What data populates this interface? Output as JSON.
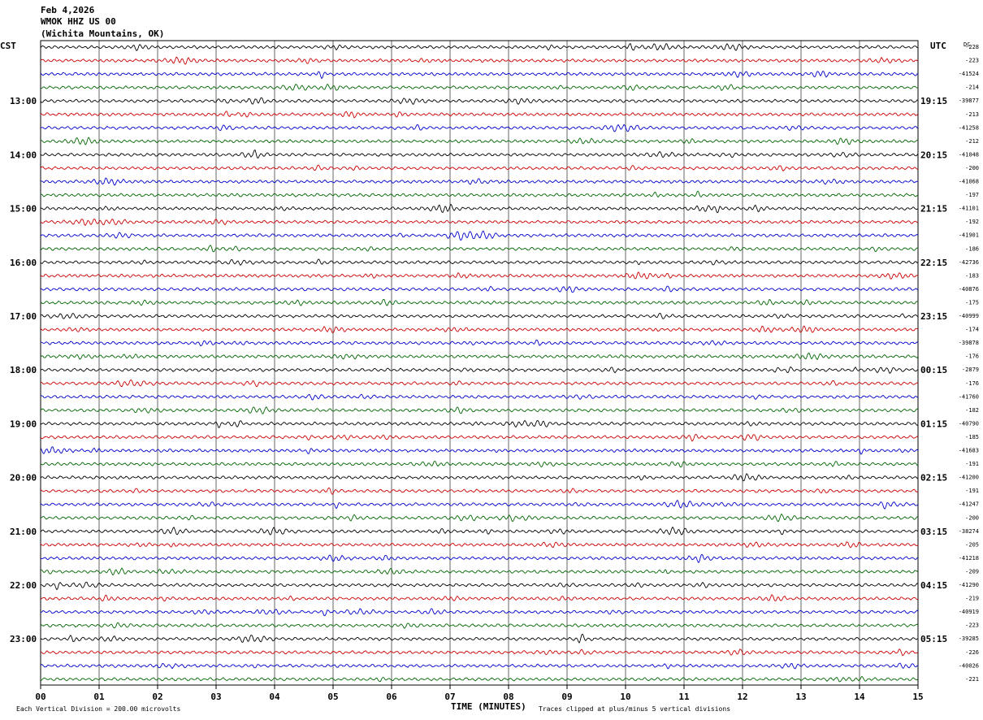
{
  "header": {
    "date": "Feb 4,2026",
    "station": "WMOK HHZ US 00",
    "location": "(Wichita Mountains, OK)"
  },
  "left_tz": "CST",
  "right_tz": "UTC",
  "dc_header": "DC",
  "footer": {
    "scale": "Each Vertical Division =  200.00 microvolts",
    "clip": "Traces clipped at plus/minus 5 vertical divisions"
  },
  "colors": {
    "cycle": [
      "#000000",
      "#cc0000",
      "#0000cc",
      "#006600"
    ],
    "grid": "#000000"
  },
  "chart_data": {
    "type": "line",
    "title": "",
    "xlabel": "TIME (MINUTES)",
    "ylabel": "",
    "x_ticks": [
      "00",
      "01",
      "02",
      "03",
      "04",
      "05",
      "06",
      "07",
      "08",
      "09",
      "10",
      "11",
      "12",
      "13",
      "14",
      "15"
    ],
    "xlim": [
      0,
      15
    ],
    "left_hour_labels": [
      "13:00",
      "14:00",
      "15:00",
      "16:00",
      "17:00",
      "18:00",
      "19:00",
      "20:00",
      "21:00",
      "22:00",
      "23:00"
    ],
    "right_hour_labels": [
      "19:15",
      "20:15",
      "21:15",
      "22:15",
      "23:15",
      "00:15",
      "01:15",
      "02:15",
      "03:15",
      "04:15",
      "05:15"
    ],
    "traces_per_hour": 4,
    "num_traces": 48,
    "dc_offsets": [
      "-228",
      "-223",
      "-41524",
      "-214",
      "-39877",
      "-213",
      "-41258",
      "-212",
      "-41048",
      "-200",
      "-41068",
      "-197",
      "-41101",
      "-192",
      "-41901",
      "-186",
      "-42736",
      "-183",
      "-40876",
      "-175",
      "-40999",
      "-174",
      "-39878",
      "-176",
      "-2879",
      "-176",
      "-41760",
      "-182",
      "-40790",
      "-185",
      "-41683",
      "-191",
      "-41200",
      "-191",
      "-41247",
      "-200",
      "-38274",
      "-205",
      "-41218",
      "-209",
      "-41290",
      "-219",
      "-40919",
      "-223",
      "-39285",
      "-226",
      "-40026",
      "-221"
    ]
  }
}
